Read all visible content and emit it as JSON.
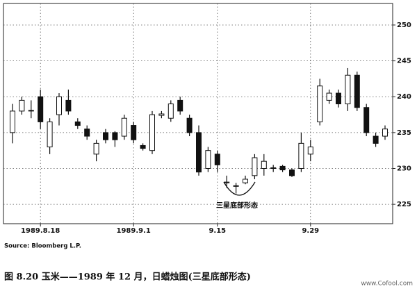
{
  "chart_data": {
    "type": "candlestick",
    "title": "图 8.20  玉米——1989 年 12 月，日蜡烛图(三星底部形态)",
    "source": "Source: Bloomberg L.P.",
    "annotation": "三星底部形态",
    "watermark": "www.Cofool.com",
    "categories": [
      null,
      null,
      null,
      "1989.8.18",
      null,
      null,
      null,
      null,
      null,
      null,
      null,
      null,
      null,
      "1989.9.1",
      null,
      null,
      null,
      null,
      null,
      null,
      null,
      null,
      "9.15",
      null,
      null,
      null,
      null,
      null,
      null,
      null,
      null,
      null,
      "9.29",
      null,
      null,
      null,
      null,
      null,
      null,
      null,
      null
    ],
    "series": [
      {
        "open": [
          235,
          238,
          238,
          240,
          233,
          237.5,
          239.5,
          236.5,
          235.5,
          232,
          235,
          235,
          234.5,
          236,
          233.2,
          232.5,
          237.4,
          237,
          239.5,
          237,
          235,
          230,
          232,
          228,
          227.5,
          228,
          229,
          230,
          230,
          230.3,
          229.8,
          230,
          232,
          236.5,
          239.5,
          240.5,
          239,
          243,
          238.5,
          234.5,
          234.5
        ],
        "high": [
          239,
          240,
          239.5,
          241,
          237,
          240.5,
          241,
          237,
          236,
          234,
          235.5,
          235.2,
          237.5,
          236.5,
          233.5,
          238,
          238,
          239.5,
          240,
          237.5,
          236,
          233,
          232.5,
          229,
          228,
          229,
          232,
          232,
          230.5,
          230.5,
          230,
          235,
          234,
          242.5,
          241,
          241,
          244,
          243.5,
          239,
          235,
          236
        ],
        "low": [
          233.5,
          237.5,
          237,
          235.5,
          232,
          236,
          237.5,
          235.5,
          234,
          231,
          233.5,
          233,
          234,
          233.5,
          232.5,
          232,
          237,
          236.5,
          237.5,
          234.5,
          229,
          229.5,
          229.5,
          227.3,
          226.5,
          227.8,
          228.5,
          229,
          229.5,
          229.5,
          228.8,
          229.5,
          231,
          236,
          239,
          238.5,
          238,
          238,
          234.5,
          233,
          234
        ],
        "close": [
          238,
          239.5,
          238.1,
          236.5,
          236.5,
          240,
          238,
          236,
          234.5,
          233.5,
          234,
          234,
          237,
          234,
          232.8,
          237.5,
          237.6,
          239,
          238,
          235,
          229.5,
          232.5,
          230.5,
          228.1,
          227.6,
          228.5,
          231.5,
          231,
          230.1,
          229.8,
          229,
          233.5,
          233,
          241.5,
          240.5,
          239,
          243,
          238.5,
          235,
          233.5,
          235.5
        ]
      }
    ],
    "up_color": "#ffffff",
    "down_color": "#111111",
    "ylim": [
      222.3,
      253
    ],
    "yticks": [
      225,
      230,
      235,
      240,
      245,
      250
    ],
    "grid": true,
    "y_axis_side": "right"
  }
}
